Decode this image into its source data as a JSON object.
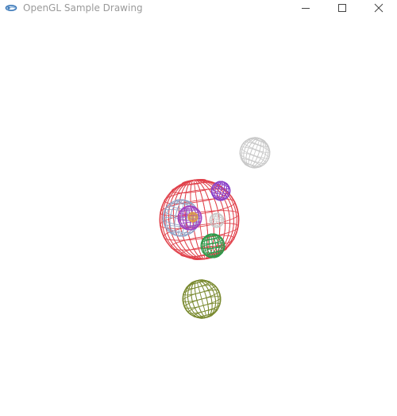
{
  "window": {
    "title": "OpenGL Sample Drawing",
    "app_icon": "opengl-app-icon",
    "controls": {
      "minimize_icon": "minimize-icon",
      "maximize_icon": "maximize-icon",
      "close_icon": "close-icon"
    }
  },
  "scene": {
    "background": "#ffffff",
    "render_mode": "wireframe",
    "bodies": [
      {
        "name": "central-sphere",
        "color": "#e0404a"
      },
      {
        "name": "inner-blue-ring-sphere",
        "color": "#8fa2c4"
      },
      {
        "name": "inner-purple-sphere",
        "color": "#a040c0"
      },
      {
        "name": "inner-orange-core",
        "color": "#e0a040"
      },
      {
        "name": "upper-purple-sphere",
        "color": "#8a40c8"
      },
      {
        "name": "small-gray-sphere",
        "color": "#c8c8c8"
      },
      {
        "name": "green-sphere",
        "color": "#2e9a4a"
      },
      {
        "name": "top-right-gray-sphere",
        "color": "#c8c8c8"
      },
      {
        "name": "olive-sphere",
        "color": "#7a8a30"
      }
    ]
  }
}
